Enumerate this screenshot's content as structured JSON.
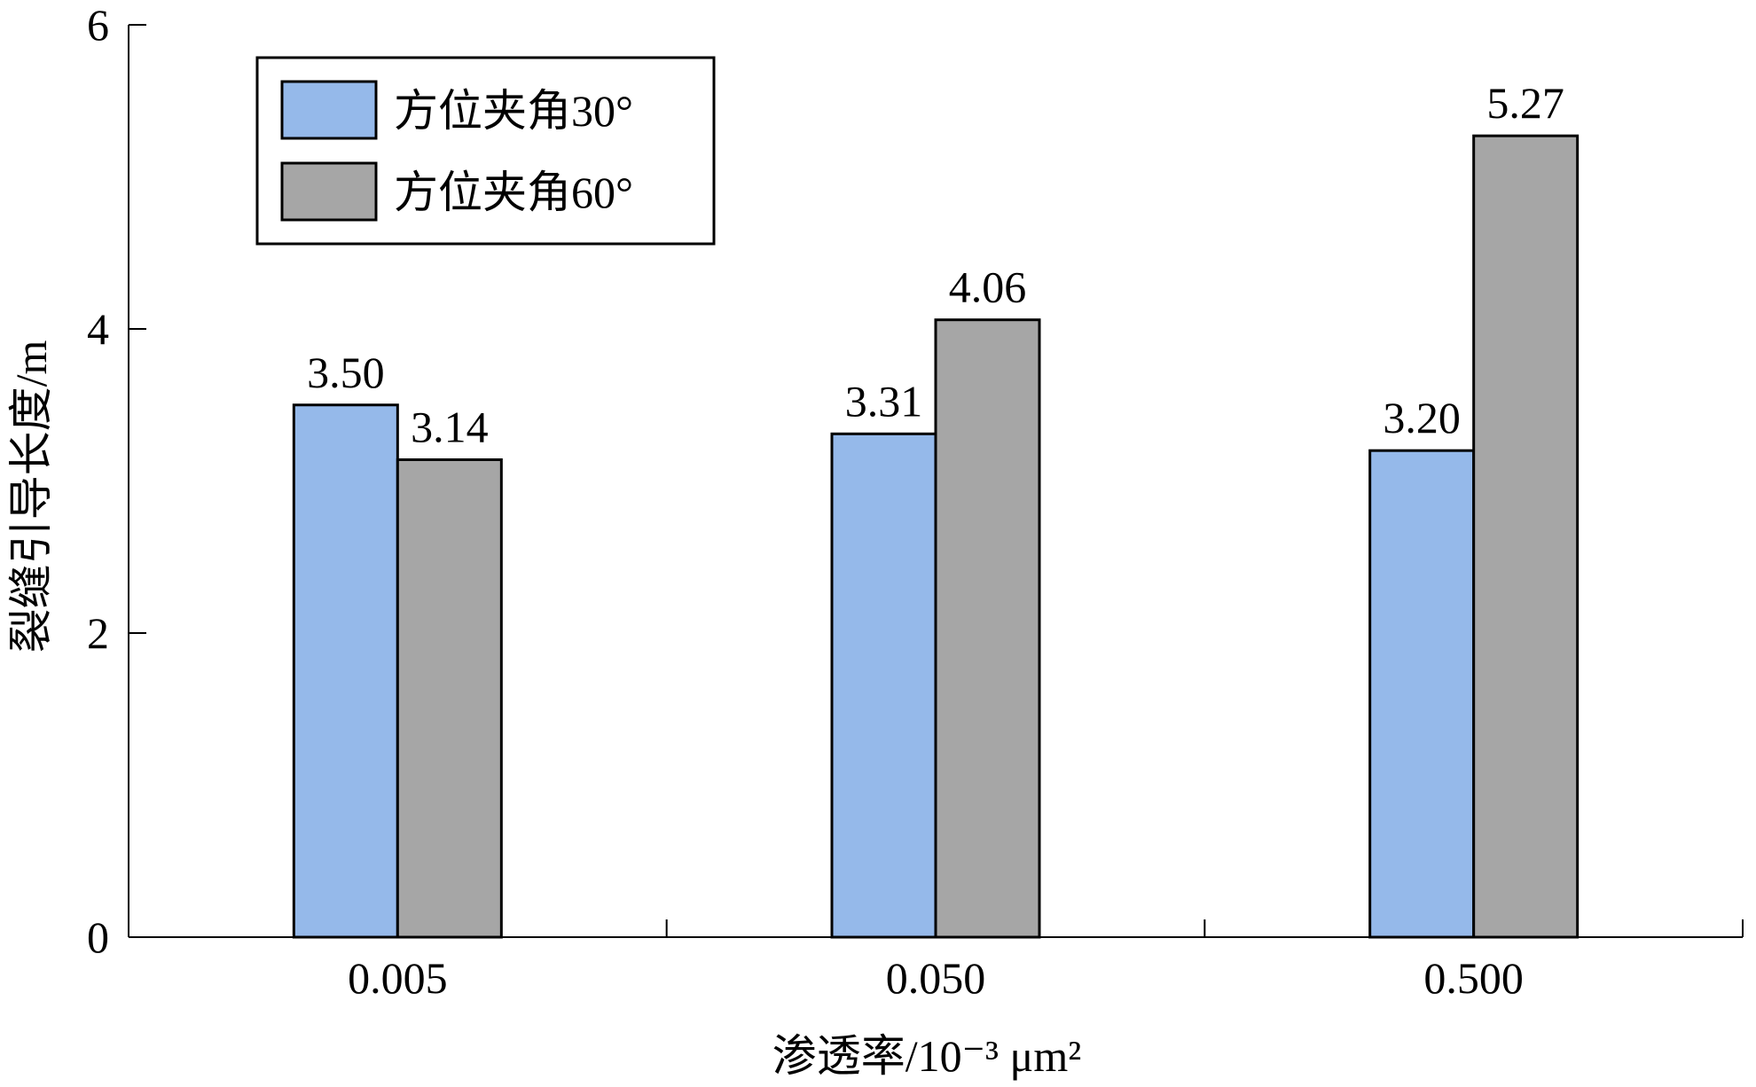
{
  "chart_data": {
    "type": "bar",
    "categories": [
      "0.005",
      "0.050",
      "0.500"
    ],
    "series": [
      {
        "name": "方位夹角30°",
        "values": [
          3.5,
          3.31,
          3.2
        ],
        "value_labels": [
          "3.50",
          "3.31",
          "3.20"
        ],
        "color": "#95b9ea"
      },
      {
        "name": "方位夹角60°",
        "values": [
          3.14,
          4.06,
          5.27
        ],
        "value_labels": [
          "3.14",
          "4.06",
          "5.27"
        ],
        "color": "#a6a6a6"
      }
    ],
    "xlabel": "渗透率/10⁻³ μm²",
    "ylabel": "裂缝引导长度/m",
    "ylim": [
      0,
      6
    ],
    "yticks": [
      0,
      2,
      4,
      6
    ],
    "ytick_labels": [
      "0",
      "2",
      "4",
      "6"
    ],
    "grid": false,
    "legend_position": "top-left"
  }
}
